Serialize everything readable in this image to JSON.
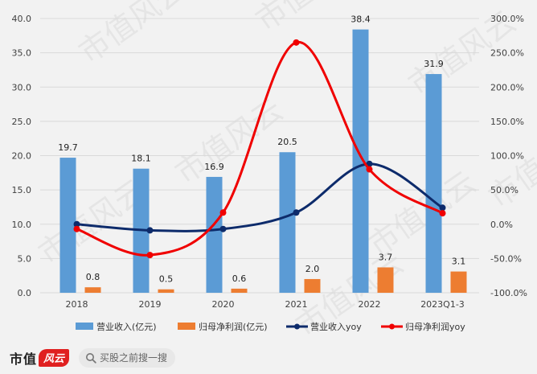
{
  "chart_data": {
    "type": "bar+line",
    "categories": [
      "2018",
      "2019",
      "2020",
      "2021",
      "2022",
      "2023Q1-3"
    ],
    "left_axis": {
      "min": 0,
      "max": 40,
      "step": 5,
      "ticks": [
        "0.0",
        "5.0",
        "10.0",
        "15.0",
        "20.0",
        "25.0",
        "30.0",
        "35.0",
        "40.0"
      ]
    },
    "right_axis": {
      "min": -100,
      "max": 300,
      "step": 50,
      "ticks": [
        "-100.0%",
        "-50.0%",
        "0.0%",
        "50.0%",
        "100.0%",
        "150.0%",
        "200.0%",
        "250.0%",
        "300.0%"
      ]
    },
    "bar_series": [
      {
        "name": "营业收入(亿元)",
        "color": "#5b9bd5",
        "values": [
          19.7,
          18.1,
          16.9,
          20.5,
          38.4,
          31.9
        ],
        "labels": [
          "19.7",
          "18.1",
          "16.9",
          "20.5",
          "38.4",
          "31.9"
        ]
      },
      {
        "name": "归母净利润(亿元)",
        "color": "#ed7d31",
        "values": [
          0.8,
          0.5,
          0.6,
          2.0,
          3.7,
          3.1
        ],
        "labels": [
          "0.8",
          "0.5",
          "0.6",
          "2.0",
          "3.7",
          "3.1"
        ]
      }
    ],
    "line_series": [
      {
        "name": "营业收入yoy",
        "color": "#0d2b6b",
        "values": [
          0,
          -9,
          -7,
          17,
          88,
          24
        ]
      },
      {
        "name": "归母净利润yoy",
        "color": "#f00000",
        "values": [
          -7,
          -45,
          17,
          265,
          80,
          16
        ]
      }
    ]
  },
  "watermark": {
    "text": "市值风云"
  },
  "footer": {
    "brand_text": "市值",
    "brand_mark": "风云",
    "search_placeholder": "买股之前搜一搜"
  },
  "colors": {
    "background": "#f2f2f2",
    "grid": "#d9d9d9",
    "axis_text": "#404040"
  }
}
